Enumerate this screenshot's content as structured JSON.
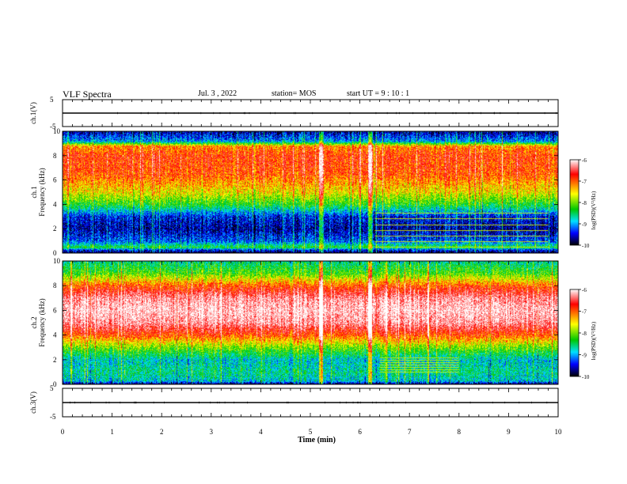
{
  "header": {
    "title": "VLF Spectra",
    "date": "Jul. 3 , 2022",
    "station": "station= MOS",
    "start": "start UT = 9 : 10 : 1"
  },
  "chart_data": [
    {
      "type": "line",
      "title": "",
      "ylabel": "ch.1(V)",
      "xlim": [
        0,
        10
      ],
      "ylim": [
        -5,
        5
      ],
      "yticks": [
        "5",
        "-5"
      ],
      "series": [
        {
          "values": [
            [
              0,
              0
            ],
            [
              10,
              0
            ]
          ]
        }
      ]
    },
    {
      "type": "heatmap",
      "title": "",
      "ylabel_lines": [
        "ch.1",
        "Frequency (kHz)"
      ],
      "xlim": [
        0,
        10
      ],
      "ylim": [
        0,
        10
      ],
      "yticks": [
        "0",
        "2",
        "4",
        "6",
        "8",
        "10"
      ],
      "colorbar": {
        "label": "log(PSD)(V²/Hz)",
        "range": [
          -10,
          -6
        ],
        "ticks": [
          "-6",
          "-7",
          "-8",
          "-9",
          "-10"
        ],
        "colors": [
          "#ffffff",
          "#ff0000",
          "#ffff00",
          "#00c800",
          "#00e0ff",
          "#0000ff",
          "#000000"
        ]
      },
      "profile": [
        {
          "f": 0.0,
          "v": -9.9
        },
        {
          "f": 0.3,
          "v": -9.3
        },
        {
          "f": 0.5,
          "v": -8.3
        },
        {
          "f": 1.0,
          "v": -9.2
        },
        {
          "f": 2.0,
          "v": -9.6
        },
        {
          "f": 3.0,
          "v": -9.4
        },
        {
          "f": 4.0,
          "v": -8.3
        },
        {
          "f": 5.0,
          "v": -7.6
        },
        {
          "f": 6.5,
          "v": -7.0
        },
        {
          "f": 8.0,
          "v": -6.9
        },
        {
          "f": 8.8,
          "v": -7.2
        },
        {
          "f": 9.2,
          "v": -9.0
        },
        {
          "f": 10.0,
          "v": -9.6
        }
      ],
      "features": [
        {
          "t": 5.2,
          "label": "broadband impulse"
        },
        {
          "t": 6.2,
          "label": "broadband impulse"
        },
        {
          "t_start": 6.3,
          "t_end": 9.8,
          "f_start": 0.5,
          "f_end": 3.3,
          "label": "narrowband tones"
        }
      ]
    },
    {
      "type": "heatmap",
      "title": "",
      "ylabel_lines": [
        "ch.2",
        "Frequency (kHz)"
      ],
      "xlim": [
        0,
        10
      ],
      "ylim": [
        0,
        10
      ],
      "yticks": [
        "0",
        "2",
        "4",
        "6",
        "8",
        "10"
      ],
      "colorbar": {
        "label": "log(PSD)(V²/Hz)",
        "range": [
          -10,
          -6
        ],
        "ticks": [
          "-6",
          "-7",
          "-8",
          "-9",
          "-10"
        ],
        "colors": [
          "#ffffff",
          "#ff0000",
          "#ffff00",
          "#00c800",
          "#00e0ff",
          "#0000ff",
          "#000000"
        ]
      },
      "profile": [
        {
          "f": 0.0,
          "v": -9.9
        },
        {
          "f": 0.3,
          "v": -8.8
        },
        {
          "f": 1.0,
          "v": -8.6
        },
        {
          "f": 2.0,
          "v": -8.8
        },
        {
          "f": 3.0,
          "v": -8.0
        },
        {
          "f": 4.0,
          "v": -7.0
        },
        {
          "f": 5.0,
          "v": -6.3
        },
        {
          "f": 6.0,
          "v": -6.1
        },
        {
          "f": 7.0,
          "v": -6.3
        },
        {
          "f": 8.0,
          "v": -7.0
        },
        {
          "f": 9.0,
          "v": -8.1
        },
        {
          "f": 10.0,
          "v": -8.6
        }
      ],
      "features": [
        {
          "t": 5.2,
          "label": "broadband impulse"
        },
        {
          "t": 6.2,
          "label": "broadband impulse"
        },
        {
          "t_start": 6.4,
          "t_end": 8.0,
          "f_start": 1.0,
          "f_end": 2.2,
          "label": "narrowband tones"
        }
      ]
    },
    {
      "type": "line",
      "title": "",
      "ylabel": "ch.3(V)",
      "xlim": [
        0,
        10
      ],
      "ylim": [
        -5,
        5
      ],
      "yticks": [
        "5",
        "-5"
      ],
      "xlabel": "Time (min)",
      "xticks": [
        "0",
        "1",
        "2",
        "3",
        "4",
        "5",
        "6",
        "7",
        "8",
        "9",
        "10"
      ],
      "series": [
        {
          "values": [
            [
              0,
              0
            ],
            [
              10,
              0
            ]
          ]
        }
      ]
    }
  ]
}
